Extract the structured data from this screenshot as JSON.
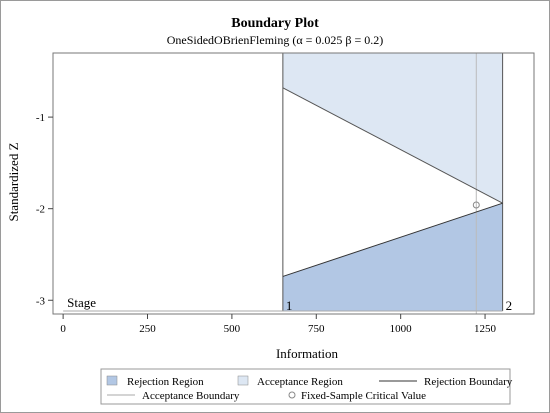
{
  "chart_data": {
    "type": "area",
    "title": "Boundary Plot",
    "subtitle": "OneSidedOBrienFleming (α = 0.025  β = 0.2)",
    "xlabel": "Information",
    "ylabel": "Standardized Z",
    "xlim": [
      -30,
      1395
    ],
    "ylim": [
      -3.15,
      -0.3
    ],
    "x_ticks": [
      0,
      250,
      500,
      750,
      1000,
      1250
    ],
    "x_tick_labels": [
      "0",
      "250",
      "500",
      "750",
      "1000",
      "1250"
    ],
    "y_ticks": [
      -1,
      -2,
      -3
    ],
    "y_tick_labels": [
      "-1",
      "-2",
      "-3"
    ],
    "stage_label": "Stage",
    "stages": [
      {
        "label": "1",
        "information": 651
      },
      {
        "label": "2",
        "information": 1302
      }
    ],
    "rejection_boundary": [
      {
        "x": 651,
        "y": -2.74
      },
      {
        "x": 1302,
        "y": -1.94
      }
    ],
    "acceptance_boundary": [
      {
        "x": 651,
        "y": -0.68
      },
      {
        "x": 1302,
        "y": -1.94
      }
    ],
    "fixed_sample": {
      "x": 1224,
      "y": -1.96
    },
    "legend_position": "bottom",
    "legend": [
      {
        "label": "Rejection Region",
        "kind": "fill",
        "color": "#b2c7e4"
      },
      {
        "label": "Acceptance Region",
        "kind": "fill",
        "color": "#dde7f3"
      },
      {
        "label": "Rejection Boundary",
        "kind": "line",
        "color": "#333333"
      },
      {
        "label": "Acceptance Boundary",
        "kind": "line",
        "color": "#a8a8a8"
      },
      {
        "label": "Fixed-Sample Critical Value",
        "kind": "circle",
        "color": "#888888"
      }
    ],
    "colors": {
      "rejection_fill": "#b2c7e4",
      "acceptance_fill": "#dde7f3",
      "rejection_line": "#333333",
      "acceptance_line": "#a8a8a8",
      "fixed_line": "#bbbbbb"
    }
  }
}
